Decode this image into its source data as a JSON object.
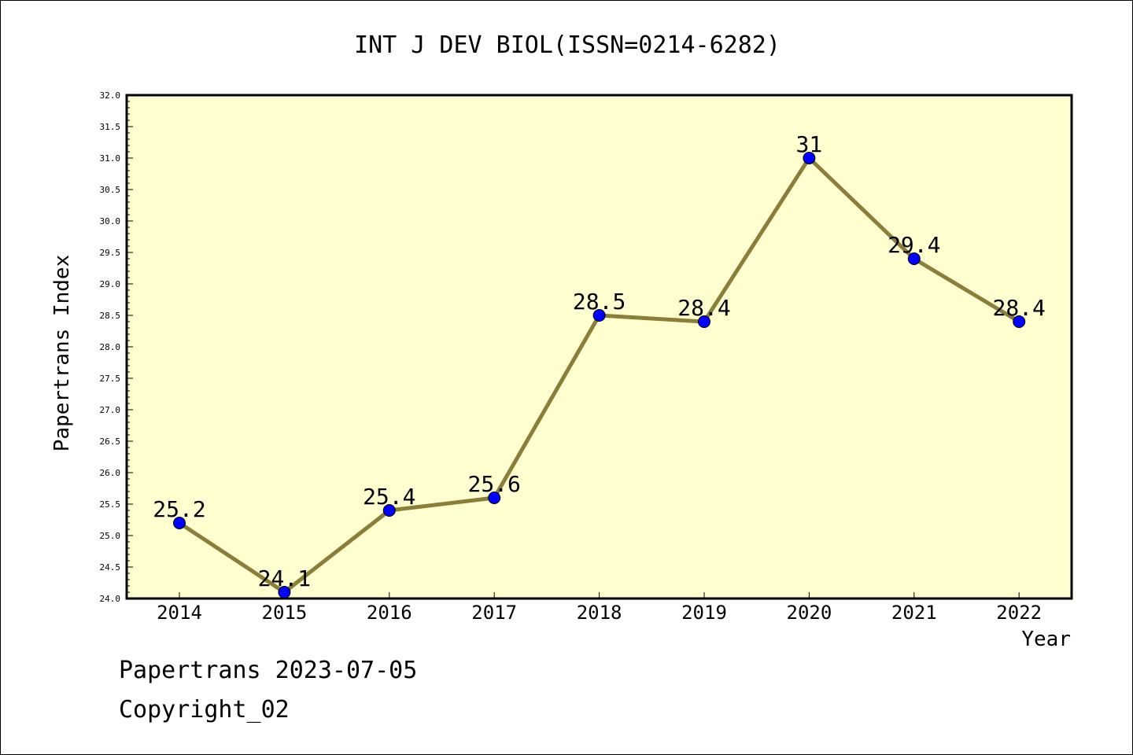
{
  "chart_data": {
    "type": "line",
    "title": "INT J DEV BIOL(ISSN=0214-6282)",
    "xlabel": "Year",
    "ylabel": "Papertrans Index",
    "categories": [
      "2014",
      "2015",
      "2016",
      "2017",
      "2018",
      "2019",
      "2020",
      "2021",
      "2022"
    ],
    "values": [
      25.2,
      24.1,
      25.4,
      25.6,
      28.5,
      28.4,
      31,
      29.4,
      28.4
    ],
    "data_labels": [
      "25.2",
      "24.1",
      "25.4",
      "25.6",
      "28.5",
      "28.4",
      "31",
      "29.4",
      "28.4"
    ],
    "ylim": [
      24.0,
      32.0
    ],
    "yticks": [
      "24.0",
      "24.5",
      "25.0",
      "25.5",
      "26.0",
      "26.5",
      "27.0",
      "27.5",
      "28.0",
      "28.5",
      "29.0",
      "29.5",
      "30.0",
      "30.5",
      "31.0",
      "31.5",
      "32.0"
    ],
    "grid": false,
    "plot_background": "#ffffd0",
    "line_color": "#8b7d3a",
    "marker_color": "#0000ff"
  },
  "footer": {
    "line1": "Papertrans 2023-07-05",
    "line2": "Copyright_02"
  }
}
